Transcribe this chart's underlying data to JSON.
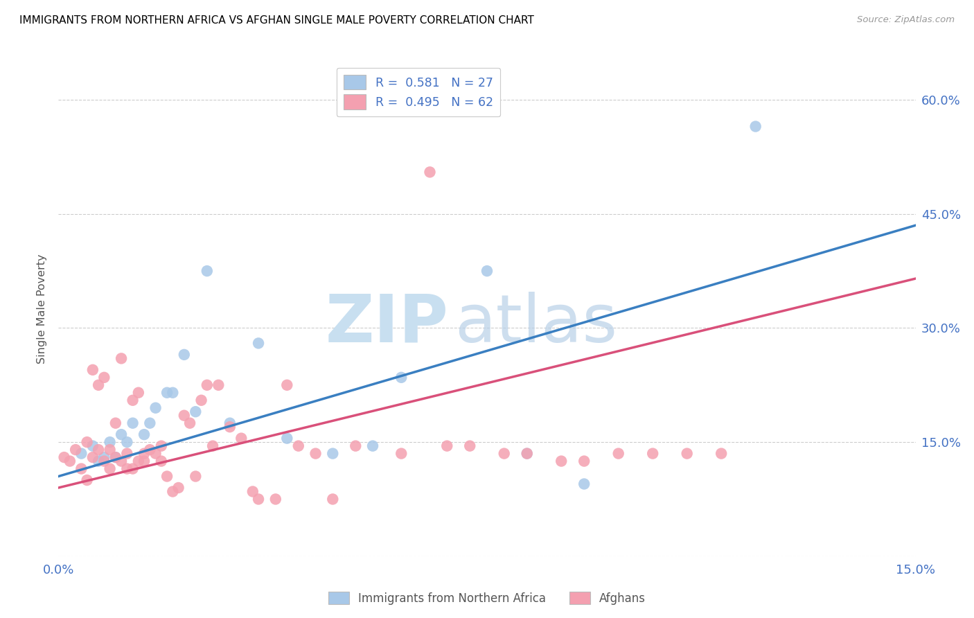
{
  "title": "IMMIGRANTS FROM NORTHERN AFRICA VS AFGHAN SINGLE MALE POVERTY CORRELATION CHART",
  "source": "Source: ZipAtlas.com",
  "ylabel": "Single Male Poverty",
  "xlim": [
    0.0,
    0.15
  ],
  "ylim": [
    0.0,
    0.65
  ],
  "yticks": [
    0.0,
    0.15,
    0.3,
    0.45,
    0.6
  ],
  "xticks": [
    0.0,
    0.05,
    0.1,
    0.15
  ],
  "xtick_labels": [
    "0.0%",
    "",
    "",
    "15.0%"
  ],
  "ytick_labels": [
    "",
    "15.0%",
    "30.0%",
    "45.0%",
    "60.0%"
  ],
  "legend_label1": "R =  0.581   N = 27",
  "legend_label2": "R =  0.495   N = 62",
  "legend_label_bottom1": "Immigrants from Northern Africa",
  "legend_label_bottom2": "Afghans",
  "blue_color": "#a8c8e8",
  "pink_color": "#f4a0b0",
  "line_blue": "#3a7fc1",
  "line_pink": "#d9507a",
  "blue_line_x0": 0.0,
  "blue_line_y0": 0.105,
  "blue_line_x1": 0.15,
  "blue_line_y1": 0.435,
  "pink_line_x0": 0.0,
  "pink_line_y0": 0.09,
  "pink_line_x1": 0.15,
  "pink_line_y1": 0.365,
  "blue_scatter_x": [
    0.004,
    0.006,
    0.007,
    0.008,
    0.009,
    0.01,
    0.011,
    0.012,
    0.013,
    0.015,
    0.016,
    0.017,
    0.019,
    0.02,
    0.022,
    0.024,
    0.026,
    0.03,
    0.035,
    0.04,
    0.048,
    0.055,
    0.06,
    0.075,
    0.082,
    0.092,
    0.122
  ],
  "blue_scatter_y": [
    0.135,
    0.145,
    0.125,
    0.13,
    0.15,
    0.13,
    0.16,
    0.15,
    0.175,
    0.16,
    0.175,
    0.195,
    0.215,
    0.215,
    0.265,
    0.19,
    0.375,
    0.175,
    0.28,
    0.155,
    0.135,
    0.145,
    0.235,
    0.375,
    0.135,
    0.095,
    0.565
  ],
  "pink_scatter_x": [
    0.001,
    0.002,
    0.003,
    0.004,
    0.005,
    0.005,
    0.006,
    0.006,
    0.007,
    0.007,
    0.008,
    0.008,
    0.009,
    0.009,
    0.01,
    0.01,
    0.011,
    0.011,
    0.012,
    0.012,
    0.013,
    0.013,
    0.014,
    0.014,
    0.015,
    0.015,
    0.016,
    0.017,
    0.018,
    0.018,
    0.019,
    0.02,
    0.021,
    0.022,
    0.023,
    0.024,
    0.025,
    0.026,
    0.027,
    0.028,
    0.03,
    0.032,
    0.034,
    0.035,
    0.038,
    0.04,
    0.042,
    0.045,
    0.048,
    0.052,
    0.06,
    0.065,
    0.068,
    0.072,
    0.078,
    0.082,
    0.088,
    0.092,
    0.098,
    0.104,
    0.11,
    0.116
  ],
  "pink_scatter_y": [
    0.13,
    0.125,
    0.14,
    0.115,
    0.1,
    0.15,
    0.13,
    0.245,
    0.14,
    0.225,
    0.125,
    0.235,
    0.115,
    0.14,
    0.13,
    0.175,
    0.125,
    0.26,
    0.115,
    0.135,
    0.115,
    0.205,
    0.125,
    0.215,
    0.125,
    0.135,
    0.14,
    0.135,
    0.125,
    0.145,
    0.105,
    0.085,
    0.09,
    0.185,
    0.175,
    0.105,
    0.205,
    0.225,
    0.145,
    0.225,
    0.17,
    0.155,
    0.085,
    0.075,
    0.075,
    0.225,
    0.145,
    0.135,
    0.075,
    0.145,
    0.135,
    0.505,
    0.145,
    0.145,
    0.135,
    0.135,
    0.125,
    0.125,
    0.135,
    0.135,
    0.135,
    0.135
  ]
}
